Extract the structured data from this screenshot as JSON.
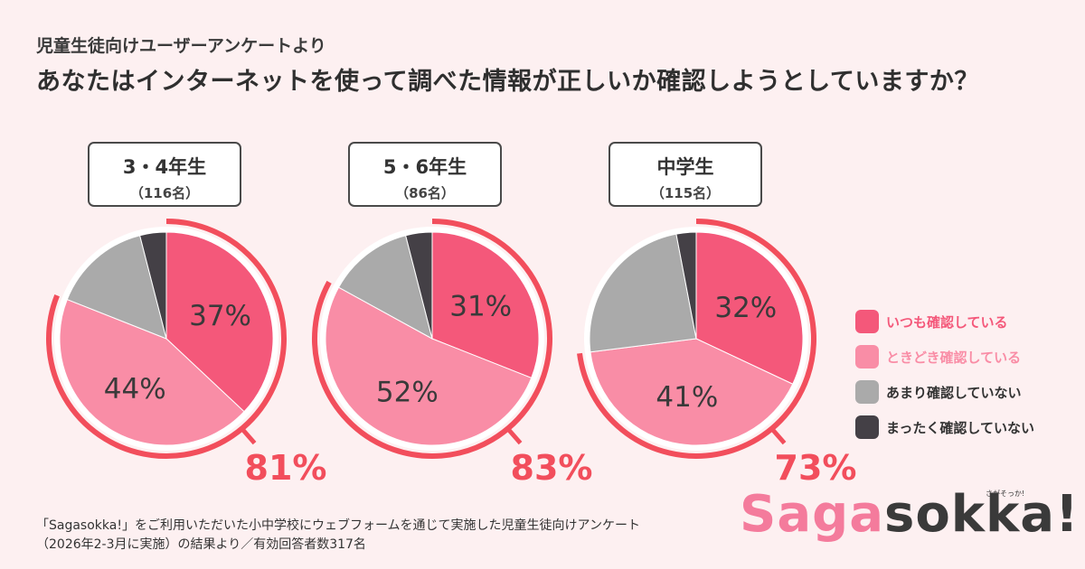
{
  "header": {
    "subtitle": "児童生徒向けユーザーアンケートより",
    "title": "あなたはインターネットを使って調べた情報が正しいか確認しようとしていますか？"
  },
  "groups": [
    {
      "name": "3・4年生",
      "count": "（116名）"
    },
    {
      "name": "5・6年生",
      "count": "（86名）"
    },
    {
      "name": "中学生",
      "count": "（115名）"
    }
  ],
  "colors": {
    "always": "#f4587a",
    "sometimes": "#f98da6",
    "rarely": "#aaaaaa",
    "never": "#444046",
    "ring": "#f24e5c",
    "background": "#fdf0f1"
  },
  "chart_data": [
    {
      "type": "pie",
      "title": "3・4年生（116名）",
      "categories": [
        "いつも確認している",
        "ときどき確認している",
        "あまり確認していない",
        "まったく確認していない"
      ],
      "values": [
        37,
        44,
        15,
        4
      ],
      "labels": [
        "37%",
        "44%",
        "",
        ""
      ],
      "combined_label": "81%",
      "combined_value": 81
    },
    {
      "type": "pie",
      "title": "5・6年生（86名）",
      "categories": [
        "いつも確認している",
        "ときどき確認している",
        "あまり確認していない",
        "まったく確認していない"
      ],
      "values": [
        31,
        52,
        13,
        4
      ],
      "labels": [
        "31%",
        "52%",
        "",
        ""
      ],
      "combined_label": "83%",
      "combined_value": 83
    },
    {
      "type": "pie",
      "title": "中学生（115名）",
      "categories": [
        "いつも確認している",
        "ときどき確認している",
        "あまり確認していない",
        "まったく確認していない"
      ],
      "values": [
        32,
        41,
        24,
        3
      ],
      "labels": [
        "32%",
        "41%",
        "",
        ""
      ],
      "combined_label": "73%",
      "combined_value": 73
    }
  ],
  "legend": [
    {
      "label": "いつも確認している",
      "key": "always",
      "text_color": "#f4587a"
    },
    {
      "label": "ときどき確認している",
      "key": "sometimes",
      "text_color": "#f98da6"
    },
    {
      "label": "あまり確認していない",
      "key": "rarely",
      "text_color": "#333333"
    },
    {
      "label": "まったく確認していない",
      "key": "never",
      "text_color": "#333333"
    }
  ],
  "footnote": {
    "line1": "「Sagasokka!」をご利用いただいた小中学校にウェブフォームを通じて実施した児童生徒向けアンケート",
    "line2": "（2026年2-3月に実施）の結果より／有効回答者数317名"
  },
  "logo": {
    "part1": "Saga",
    "part2": "sokka!",
    "small": "さがそっか!"
  }
}
